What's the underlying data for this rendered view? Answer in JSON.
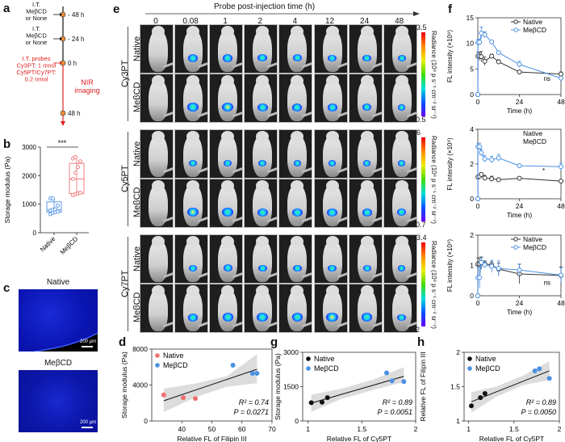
{
  "panels": {
    "a": "a",
    "b": "b",
    "c": "c",
    "d": "d",
    "e": "e",
    "f": "f",
    "g": "g",
    "h": "h"
  },
  "timeline": {
    "steps": [
      {
        "label_lines": [
          "I.T.",
          "MeβCD",
          "or None"
        ],
        "time": "- 48 h",
        "color": "#111111"
      },
      {
        "label_lines": [
          "I.T.",
          "MeβCD",
          "or None"
        ],
        "time": "- 24 h",
        "color": "#111111"
      },
      {
        "label_lines": [
          "I.T. probes",
          "Cy3PT: 1 nmol",
          "Cy5PT/Cy7PT:",
          "0.2 nmol"
        ],
        "time": "0 h",
        "color": "#e02020"
      },
      {
        "label_lines": [],
        "time": "48 h",
        "color": "#111111"
      }
    ],
    "imaging_label_lines": [
      "NIR",
      "imaging"
    ],
    "node_color": "#f0903a",
    "red": "#e02020"
  },
  "imaging": {
    "header": "Probe post-injection time (h)",
    "timepoints": [
      "0",
      "0.08",
      "1",
      "2",
      "4",
      "12",
      "24",
      "48"
    ],
    "groups": [
      {
        "probe": "Cy3PT",
        "rows": [
          "Native",
          "MeβCD"
        ],
        "colorbar": {
          "max": "3.5",
          "min": "0.5"
        },
        "intensity": [
          [
            0,
            0.55,
            0.5,
            0.45,
            0.4,
            0.35,
            0.3,
            0.25
          ],
          [
            0,
            0.65,
            0.75,
            0.6,
            0.5,
            0.5,
            0.4,
            0.2
          ]
        ]
      },
      {
        "probe": "Cy5PT",
        "rows": [
          "Native",
          "MeβCD"
        ],
        "colorbar": {
          "max": "6",
          "min": "0.7"
        },
        "intensity": [
          [
            0,
            0.3,
            0.3,
            0.25,
            0.2,
            0.2,
            0.2,
            0.2
          ],
          [
            0,
            0.85,
            0.7,
            0.6,
            0.55,
            0.6,
            0.5,
            0.45
          ]
        ]
      },
      {
        "probe": "Cy7PT",
        "rows": [
          "Native",
          "MeβCD"
        ],
        "colorbar": {
          "max": "3.4",
          "min": "2"
        },
        "intensity": [
          [
            0,
            0.35,
            0.4,
            0.35,
            0.35,
            0.3,
            0.25,
            0.2
          ],
          [
            0,
            0.6,
            0.65,
            0.7,
            0.7,
            0.85,
            0.65,
            0.35
          ]
        ]
      }
    ],
    "colorbar_label": "Radiance (10⁸ p s⁻¹ cm⁻² sr⁻¹)"
  },
  "histology": {
    "images": [
      {
        "title": "Native",
        "scale": "200 μm"
      },
      {
        "title": "MeβCD",
        "scale": "200 μm"
      }
    ]
  },
  "chart_data": [
    {
      "id": "b",
      "type": "box",
      "ylabel": "Storage modulus (Pa)",
      "ylim": [
        0,
        3000
      ],
      "yticks": [
        0,
        1000,
        2000,
        3000
      ],
      "categories": [
        "Native",
        "MeβCD"
      ],
      "colors": [
        "#4a90e2",
        "#f07070"
      ],
      "significance": "***",
      "series": [
        {
          "name": "Native",
          "points": [
            650,
            700,
            720,
            740,
            780,
            800,
            820,
            950,
            1200,
            1200
          ],
          "q1": 720,
          "median": 800,
          "q3": 1080,
          "min": 650,
          "max": 1200
        },
        {
          "name": "MeβCD",
          "points": [
            1320,
            1350,
            1380,
            1400,
            1880,
            2100,
            2300,
            2500,
            2600,
            2650
          ],
          "q1": 1370,
          "median": 1880,
          "q3": 2430,
          "min": 1320,
          "max": 2650
        }
      ]
    },
    {
      "id": "f1",
      "type": "line",
      "xlabel": "Time (h)",
      "ylabel": "FL intensity (×10⁹)",
      "xlim": [
        0,
        48
      ],
      "ylim": [
        0,
        15
      ],
      "xticks": [
        0,
        24,
        48
      ],
      "yticks": [
        0,
        5,
        10,
        15
      ],
      "legend": [
        "Native",
        "MeβCD"
      ],
      "annotation": "ns",
      "x": [
        0,
        0.08,
        1,
        2,
        4,
        8,
        12,
        24,
        48
      ],
      "series": [
        {
          "name": "Native",
          "color": "#333333",
          "values": [
            0,
            7.5,
            7.5,
            7.4,
            6.5,
            7.5,
            6.4,
            4.4,
            4.0
          ],
          "err": [
            0,
            0.8,
            0.8,
            1.0,
            0.8,
            0.4,
            0.4,
            0.3,
            0.4
          ]
        },
        {
          "name": "MeβCD",
          "color": "#4a90e2",
          "values": [
            0,
            10.2,
            10.2,
            12.0,
            11.7,
            10.3,
            8.2,
            5.9,
            3.2
          ],
          "err": [
            0,
            0.6,
            0.6,
            1.2,
            0.6,
            0.3,
            0.3,
            0.6,
            0.3
          ]
        }
      ]
    },
    {
      "id": "f2",
      "type": "line",
      "xlabel": "Time (h)",
      "ylabel": "FL intensity (×10⁹)",
      "xlim": [
        0,
        48
      ],
      "ylim": [
        0,
        4
      ],
      "xticks": [
        0,
        24,
        48
      ],
      "yticks": [
        0,
        2,
        4
      ],
      "legend": [
        "Native",
        "MeβCD"
      ],
      "annotation": "*",
      "x": [
        0,
        0.08,
        1,
        2,
        4,
        8,
        12,
        24,
        48
      ],
      "series": [
        {
          "name": "Native",
          "color": "#333333",
          "values": [
            0,
            1.25,
            1.3,
            1.4,
            1.2,
            1.15,
            1.1,
            1.18,
            1.02
          ],
          "err": [
            0,
            0.1,
            0.1,
            0.1,
            0.15,
            0.15,
            0.1,
            0.1,
            0.08
          ]
        },
        {
          "name": "MeβCD",
          "color": "#4a90e2",
          "values": [
            0,
            3.0,
            3.0,
            2.65,
            2.3,
            2.25,
            2.35,
            1.9,
            1.85
          ],
          "err": [
            0,
            0.2,
            0.2,
            0.2,
            0.2,
            0.2,
            0.2,
            0.1,
            0.2
          ]
        }
      ]
    },
    {
      "id": "f3",
      "type": "line",
      "xlabel": "Time (h)",
      "ylabel": "FL intensity (×10⁹)",
      "xlim": [
        0,
        48
      ],
      "ylim": [
        0,
        2
      ],
      "xticks": [
        0,
        24,
        48
      ],
      "yticks": [
        0,
        1,
        2
      ],
      "legend": [
        "Native",
        "MeβCD"
      ],
      "annotation": "ns",
      "x": [
        0,
        0.08,
        1,
        2,
        4,
        8,
        12,
        24,
        48
      ],
      "series": [
        {
          "name": "Native",
          "color": "#333333",
          "values": [
            0,
            1.05,
            1.05,
            1.08,
            1.05,
            1.02,
            0.88,
            0.72,
            0.67
          ],
          "err": [
            0,
            0.2,
            0.2,
            0.2,
            0.1,
            0.1,
            0.2,
            0.32,
            0.28
          ]
        },
        {
          "name": "MeβCD",
          "color": "#4a90e2",
          "values": [
            0,
            0.6,
            0.6,
            1.1,
            1.02,
            0.97,
            0.9,
            0.85,
            0.68
          ],
          "err": [
            0,
            0.35,
            0.35,
            0.15,
            0.1,
            0.2,
            0.25,
            0.2,
            0.25
          ]
        }
      ]
    },
    {
      "id": "d",
      "type": "scatter",
      "xlabel": "Relative FL of Filipin III",
      "ylabel": "Storage modulus (Pa)",
      "xlim": [
        30,
        70
      ],
      "ylim": [
        0,
        8000
      ],
      "xticks": [
        40,
        50,
        60,
        70
      ],
      "yticks": [
        0,
        4000,
        8000
      ],
      "stats": {
        "r2": "R² = 0.74",
        "p": "P =  0.0271"
      },
      "fit": {
        "x0": 34,
        "y0": 2250,
        "x1": 65,
        "y1": 5750,
        "band": [
          [
            34,
            1000,
            3600
          ],
          [
            45,
            2700,
            4200
          ],
          [
            55,
            3800,
            5000
          ],
          [
            65,
            4200,
            7400
          ]
        ]
      },
      "series": [
        {
          "name": "Native",
          "color": "#f07070",
          "points": [
            [
              34,
              2900
            ],
            [
              40.5,
              2600
            ],
            [
              44.5,
              2500
            ]
          ]
        },
        {
          "name": "MeβCD",
          "color": "#4a90e2",
          "points": [
            [
              57,
              6200
            ],
            [
              63.5,
              5300
            ],
            [
              65,
              5300
            ]
          ]
        }
      ]
    },
    {
      "id": "g",
      "type": "scatter",
      "xlabel": "Relative FL of Cy5PT",
      "ylabel": "Storage modulus (Pa)",
      "xlim": [
        0.95,
        2
      ],
      "ylim": [
        0,
        3000
      ],
      "xticks": [
        1,
        1.5,
        2
      ],
      "yticks": [
        0,
        1500,
        3000
      ],
      "stats": {
        "r2": "R² = 0.89",
        "p": "P = 0.0051"
      },
      "fit": {
        "x0": 1.03,
        "y0": 780,
        "x1": 1.89,
        "y1": 1950,
        "band": [
          [
            1.03,
            400,
            1150
          ],
          [
            1.3,
            950,
            1400
          ],
          [
            1.6,
            1350,
            1800
          ],
          [
            1.89,
            1700,
            2350
          ]
        ]
      },
      "series": [
        {
          "name": "Native",
          "color": "#111111",
          "points": [
            [
              1.03,
              800
            ],
            [
              1.13,
              820
            ],
            [
              1.18,
              1020
            ]
          ]
        },
        {
          "name": "MeβCD",
          "color": "#4a90e2",
          "points": [
            [
              1.73,
              2100
            ],
            [
              1.78,
              1750
            ],
            [
              1.89,
              1720
            ]
          ]
        }
      ]
    },
    {
      "id": "h",
      "type": "scatter",
      "xlabel": "Relative FL of Cy5PT",
      "ylabel": "Relative FL of Filipin III",
      "xlim": [
        0.95,
        2
      ],
      "ylim": [
        1,
        2
      ],
      "xticks": [
        1,
        1.5,
        2
      ],
      "yticks": [
        1,
        1.5,
        2
      ],
      "stats": {
        "r2": "R² = 0.89",
        "p": "P = 0.0050"
      },
      "fit": {
        "x0": 1.03,
        "y0": 1.28,
        "x1": 1.89,
        "y1": 1.73,
        "band": [
          [
            1.03,
            1.12,
            1.42
          ],
          [
            1.3,
            1.35,
            1.5
          ],
          [
            1.6,
            1.52,
            1.66
          ],
          [
            1.89,
            1.6,
            1.87
          ]
        ]
      },
      "series": [
        {
          "name": "Native",
          "color": "#111111",
          "points": [
            [
              1.03,
              1.22
            ],
            [
              1.13,
              1.34
            ],
            [
              1.18,
              1.4
            ]
          ]
        },
        {
          "name": "MeβCD",
          "color": "#4a90e2",
          "points": [
            [
              1.73,
              1.73
            ],
            [
              1.78,
              1.76
            ],
            [
              1.89,
              1.62
            ]
          ]
        }
      ]
    }
  ]
}
